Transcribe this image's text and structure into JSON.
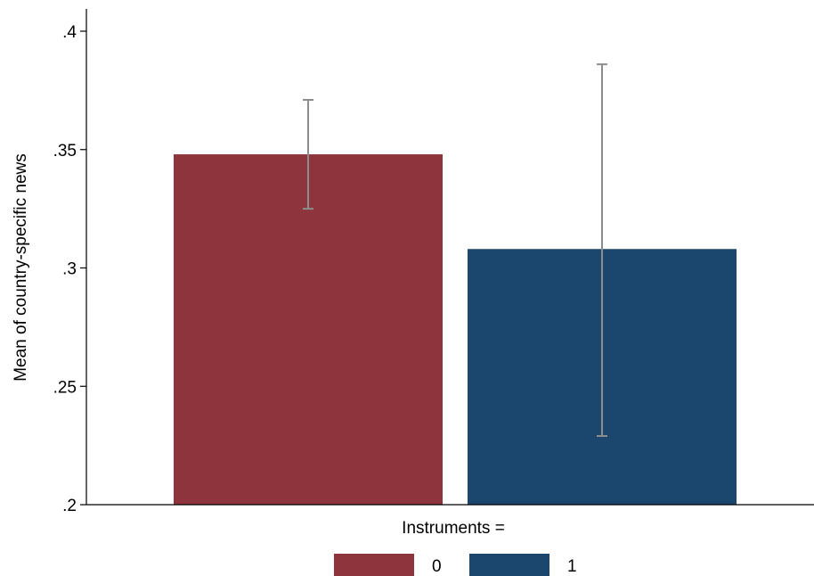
{
  "chart_data": {
    "type": "bar",
    "title": "",
    "xlabel": "",
    "ylabel": "Mean of country-specific news",
    "ylim": [
      0.2,
      0.4
    ],
    "yticks": [
      {
        "value": 0.2,
        "label": ".2"
      },
      {
        "value": 0.25,
        "label": ".25"
      },
      {
        "value": 0.3,
        "label": ".3"
      },
      {
        "value": 0.35,
        "label": ".35"
      },
      {
        "value": 0.4,
        "label": ".4"
      }
    ],
    "grid": false,
    "legend": {
      "title": "Instruments =",
      "placement": "bottom",
      "entries": [
        "0",
        "1"
      ]
    },
    "series": [
      {
        "category": "0",
        "value": 0.348,
        "ci_low": 0.325,
        "ci_high": 0.371,
        "color": "#8d343d"
      },
      {
        "category": "1",
        "value": 0.308,
        "ci_low": 0.229,
        "ci_high": 0.386,
        "color": "#1b466d"
      }
    ],
    "error_bar_color": "#8c8c8c"
  }
}
